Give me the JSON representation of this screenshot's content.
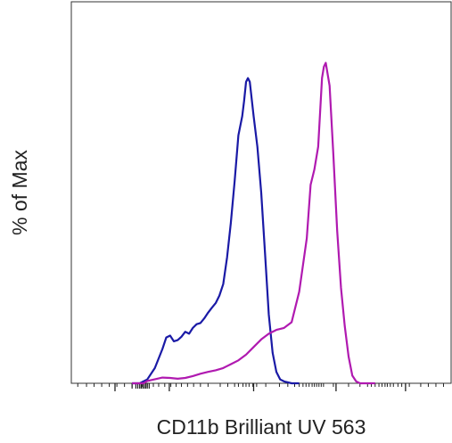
{
  "chart_data": {
    "type": "line",
    "title": "",
    "xlabel": "CD11b Brilliant UV 563",
    "ylabel": "% of Max",
    "x_scale": "log",
    "xlim": [
      0,
      1
    ],
    "ylim": [
      0,
      100
    ],
    "grid": false,
    "legend": "none",
    "series": [
      {
        "color": "#1a1aa6",
        "x": [
          0.16,
          0.18,
          0.2,
          0.22,
          0.24,
          0.25,
          0.26,
          0.27,
          0.28,
          0.29,
          0.3,
          0.31,
          0.32,
          0.33,
          0.34,
          0.35,
          0.36,
          0.37,
          0.38,
          0.39,
          0.4,
          0.41,
          0.42,
          0.43,
          0.44,
          0.45,
          0.455,
          0.46,
          0.465,
          0.47,
          0.48,
          0.49,
          0.5,
          0.51,
          0.52,
          0.53,
          0.54,
          0.55,
          0.56,
          0.58,
          0.6
        ],
        "y": [
          0,
          0,
          1,
          4,
          9,
          12,
          12.5,
          11,
          11.3,
          12.2,
          13.5,
          13,
          14.5,
          15.5,
          15.8,
          17,
          18.5,
          19.8,
          21,
          23,
          26,
          33,
          42,
          53,
          65,
          70,
          74,
          79,
          80,
          79,
          70,
          62,
          50,
          34,
          18,
          8,
          3,
          1,
          0.5,
          0,
          0
        ]
      },
      {
        "color": "#b01ab0",
        "x": [
          0.16,
          0.19,
          0.2,
          0.24,
          0.26,
          0.28,
          0.3,
          0.32,
          0.34,
          0.36,
          0.38,
          0.4,
          0.42,
          0.44,
          0.46,
          0.48,
          0.5,
          0.52,
          0.54,
          0.56,
          0.58,
          0.6,
          0.62,
          0.63,
          0.64,
          0.65,
          0.66,
          0.665,
          0.67,
          0.68,
          0.69,
          0.7,
          0.71,
          0.72,
          0.73,
          0.74,
          0.75,
          0.76,
          0.78,
          0.8
        ],
        "y": [
          0,
          0,
          0.6,
          1.5,
          1.4,
          1.2,
          1.4,
          1.9,
          2.5,
          3,
          3.4,
          4,
          5,
          6,
          7.5,
          9.5,
          11.5,
          13,
          14,
          14.5,
          16,
          24,
          38,
          52,
          56,
          62,
          80,
          83,
          84,
          78,
          60,
          40,
          25,
          15,
          7,
          2,
          0.5,
          0,
          0,
          0
        ]
      }
    ],
    "minor_ticks_x": [
      0.017,
      0.04,
      0.06,
      0.08,
      0.1,
      0.12,
      0.14,
      0.16,
      0.186,
      0.2,
      0.216,
      0.23,
      0.246,
      0.262,
      0.276,
      0.29,
      0.306,
      0.322,
      0.34,
      0.36,
      0.392,
      0.412,
      0.43,
      0.44,
      0.452,
      0.46,
      0.468,
      0.478,
      0.488,
      0.512,
      0.548,
      0.57,
      0.588,
      0.6,
      0.61,
      0.618,
      0.626,
      0.634,
      0.64,
      0.646,
      0.652,
      0.658,
      0.664,
      0.69,
      0.73,
      0.76,
      0.78,
      0.79,
      0.8,
      0.81,
      0.818,
      0.826,
      0.832,
      0.84,
      0.848,
      0.86,
      0.87,
      0.89,
      0.92,
      0.94,
      0.96,
      0.98
    ],
    "major_ticks_x": [
      0.115,
      0.258,
      0.48,
      0.697,
      0.88
    ],
    "dense_ticks_x": [
      0.16,
      0.17,
      0.175,
      0.18,
      0.184,
      0.188,
      0.192,
      0.196,
      0.2,
      0.205
    ]
  }
}
